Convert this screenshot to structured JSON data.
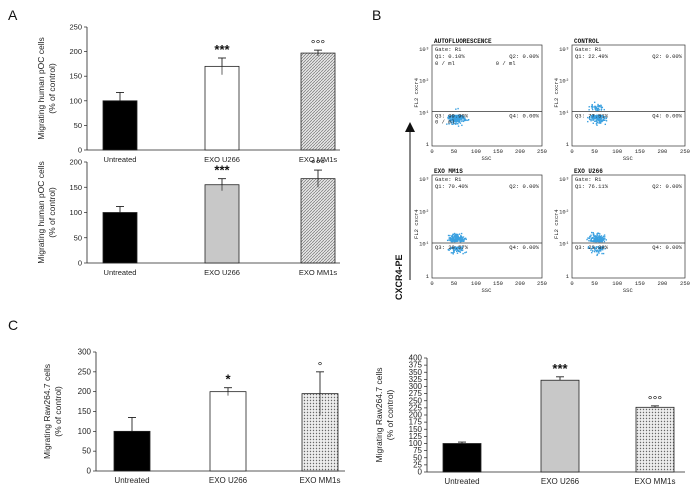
{
  "panels": {
    "a": "A",
    "b": "B",
    "c": "C"
  },
  "colors": {
    "untreated": "#000000",
    "exo_u266_white": "#ffffff",
    "exo_u266_gray": "#c8c8c8",
    "exo_mm1s": "#d8d8d8",
    "flow_dots": "#3aa0e0"
  },
  "chart_data": [
    {
      "id": "A-top",
      "type": "bar",
      "categories": [
        "Untreated",
        "EXO U266",
        "EXO MM1s"
      ],
      "values": [
        100,
        170,
        197
      ],
      "errors": [
        17,
        17,
        6
      ],
      "significance": [
        "",
        "***",
        "°°°"
      ],
      "ylabel": "Migrating human pOC cells\n(% of control)",
      "ylim": [
        0,
        250
      ],
      "yticks": [
        0,
        50,
        100,
        150,
        200,
        250
      ]
    },
    {
      "id": "A-bottom",
      "type": "bar",
      "categories": [
        "Untreated",
        "EXO U266",
        "EXO MM1s"
      ],
      "values": [
        100,
        155,
        167
      ],
      "errors": [
        12,
        12,
        17
      ],
      "significance": [
        "",
        "***",
        "°°°"
      ],
      "ylabel": "Migrating human pOC cells\n(% of control)",
      "ylim": [
        0,
        200
      ],
      "yticks": [
        0,
        50,
        100,
        150,
        200
      ]
    },
    {
      "id": "C-left",
      "type": "bar",
      "categories": [
        "Untreated",
        "EXO U266",
        "EXO MM1s"
      ],
      "values": [
        100,
        200,
        195
      ],
      "errors": [
        35,
        10,
        55
      ],
      "significance": [
        "",
        "*",
        "°"
      ],
      "ylabel": "Migrating Raw264.7 cells\n(% of control)",
      "ylim": [
        0,
        300
      ],
      "yticks": [
        0,
        50,
        100,
        150,
        200,
        250,
        300
      ]
    },
    {
      "id": "C-right",
      "type": "bar",
      "categories": [
        "Untreated",
        "EXO U266",
        "EXO MM1s"
      ],
      "values": [
        100,
        322,
        227
      ],
      "errors": [
        5,
        12,
        5
      ],
      "significance": [
        "",
        "***",
        "°°°"
      ],
      "ylabel": "Migrating Raw264.7 cells\n(% of control)",
      "ylim": [
        0,
        400
      ],
      "yticks": [
        0,
        25,
        50,
        75,
        100,
        125,
        150,
        175,
        200,
        225,
        250,
        275,
        300,
        325,
        350,
        375,
        400
      ]
    }
  ],
  "flow": {
    "yaxis_label": "CXCR4-PE",
    "xlabel": "SSC",
    "ylabel": "FL2 cxcr4",
    "xticks": [
      "0",
      "50",
      "100",
      "150",
      "200",
      "250"
    ],
    "yticks": [
      "10³",
      "10²",
      "10¹",
      "1"
    ],
    "plots": [
      {
        "title": "AUTOFLUORESCENCE",
        "gate": "Gate: R1",
        "q1": "Q1: 0.10%",
        "q2": "Q2: 0.00%",
        "q3": "Q3: 99.90%",
        "q4": "Q4: 0.00%",
        "extra1": "0 / ml",
        "extra2": "0 / ml",
        "extra3": "0 / ml"
      },
      {
        "title": "CONTROL",
        "gate": "Gate: R1",
        "q1": "Q1: 22.49%",
        "q2": "Q2: 0.00%",
        "q3": "Q3: 77.51%",
        "q4": "Q4: 0.00%"
      },
      {
        "title": "EXO MM1S",
        "gate": "Gate: R1",
        "q1": "Q1: 70.40%",
        "q2": "Q2: 0.00%",
        "q3": "Q3: 29.57%",
        "q4": "Q4: 0.00%"
      },
      {
        "title": "EXO U266",
        "gate": "Gate: R1",
        "q1": "Q1: 76.11%",
        "q2": "Q2: 0.00%",
        "q3": "Q3: 23.89%",
        "q4": "Q4: 0.00%"
      }
    ]
  }
}
